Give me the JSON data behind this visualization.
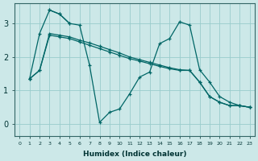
{
  "xlabel": "Humidex (Indice chaleur)",
  "bg_color": "#cce8e8",
  "grid_color": "#99cccc",
  "line_color": "#006666",
  "xlim": [
    -0.5,
    23.5
  ],
  "ylim": [
    -0.35,
    3.6
  ],
  "yticks": [
    0,
    1,
    2,
    3
  ],
  "xticks": [
    0,
    1,
    2,
    3,
    4,
    5,
    6,
    7,
    8,
    9,
    10,
    11,
    12,
    13,
    14,
    15,
    16,
    17,
    18,
    19,
    20,
    21,
    22,
    23
  ],
  "series": [
    {
      "x": [
        1,
        2,
        3,
        4,
        5,
        6,
        7,
        8,
        9,
        10,
        11,
        12,
        13,
        14,
        15,
        16,
        17,
        18,
        19,
        20,
        21,
        22,
        23
      ],
      "y": [
        1.35,
        1.6,
        2.65,
        2.6,
        2.55,
        2.45,
        2.35,
        2.25,
        2.15,
        2.05,
        1.95,
        1.88,
        1.8,
        1.72,
        1.65,
        1.6,
        1.6,
        1.25,
        0.82,
        0.65,
        0.55,
        0.55,
        0.5
      ]
    },
    {
      "x": [
        1,
        2,
        3,
        4,
        5,
        6,
        7,
        8,
        9,
        10,
        11,
        12,
        13,
        14,
        15,
        16,
        17,
        18,
        19,
        20,
        21,
        22,
        23
      ],
      "y": [
        1.35,
        1.6,
        2.7,
        2.65,
        2.6,
        2.5,
        2.42,
        2.32,
        2.22,
        2.12,
        2.0,
        1.92,
        1.84,
        1.76,
        1.68,
        1.62,
        1.6,
        1.25,
        0.82,
        0.65,
        0.55,
        0.55,
        0.5
      ]
    },
    {
      "comment": "Top line: x=3 peak ~3.4, x=4 ~3.3, x=5 ~3.0, x=6 ~2.95, x=7 ~1.75, x=8 ~0.05, x=9 ~0.35, x=10 ~0.45, x=11 ~0.9, x=12 ~1.4, x=13 ~1.55, x=14 ~2.4, x=15 ~2.55, x=16 ~3.05, x=17 ~2.95, x=18 ~1.62, x=19 ~1.25, x=20 ~0.82, x=21 ~0.65, x=22 ~0.55, x=23 ~0.5",
      "x": [
        3,
        4,
        5,
        6,
        7,
        8,
        9,
        10,
        11,
        12,
        13,
        14,
        15,
        16,
        17,
        18,
        19,
        20,
        21,
        22,
        23
      ],
      "y": [
        3.4,
        3.28,
        3.0,
        2.95,
        1.75,
        0.05,
        0.35,
        0.45,
        0.9,
        1.4,
        1.55,
        2.4,
        2.55,
        3.05,
        2.95,
        1.62,
        1.25,
        0.82,
        0.65,
        0.55,
        0.5
      ]
    },
    {
      "x": [
        1,
        2,
        3,
        4,
        5
      ],
      "y": [
        1.35,
        2.7,
        3.4,
        3.28,
        3.0
      ]
    }
  ]
}
